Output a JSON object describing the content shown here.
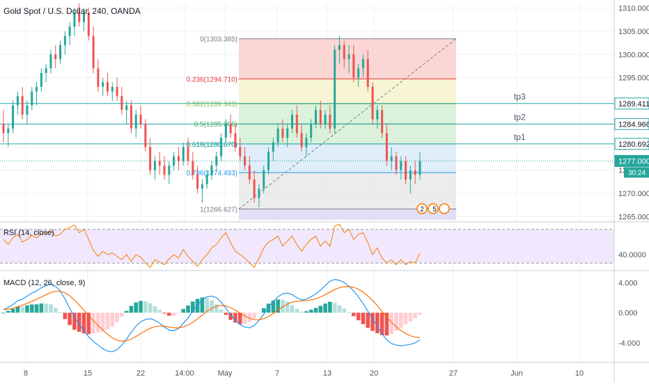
{
  "header": {
    "symbol_title": "Gold Spot / U.S. Dollar, 240, OANDA"
  },
  "colors": {
    "up": "#26a69a",
    "down": "#ef5350",
    "grid": "#eef0f3",
    "axis_text": "#50535e",
    "horizontal_line": "#26a6a6",
    "current_price_bg": "#26a69a",
    "rsi_line": "#f57c00",
    "rsi_band": "#e9d8fd",
    "macd_line": "#2196f3",
    "signal_line": "#ff6d00",
    "hist_up_strong": "#26a69a",
    "hist_up_weak": "#b2dfdb",
    "hist_down_strong": "#ef5350",
    "hist_down_weak": "#ffcdd2",
    "fib_zone_0": "#f8c9c7",
    "fib_zone_1": "#f4f2c4",
    "fib_zone_2": "#cdeccf",
    "fib_zone_3": "#d5e8f7",
    "fib_zone_4": "#e6e6e6",
    "fib_zone_5": "#d9d7f3"
  },
  "chart_data": {
    "type": "candlestick",
    "title": "Gold Spot / U.S. Dollar, 240, OANDA",
    "x_ticks": [
      "8",
      "15",
      "22",
      "14:00",
      "May",
      "7",
      "13",
      "20",
      "27",
      "Jun",
      "10"
    ],
    "price_axis": {
      "ticks": [
        "1310.000",
        "1305.000",
        "1300.000",
        "1295.000",
        "1290.000",
        "1285.000",
        "1280.000",
        "1275.000",
        "1270.000",
        "1265.000"
      ],
      "ylim": [
        1264,
        1311
      ],
      "tag_values": [
        1289.411,
        1284.966,
        1280.692,
        1277.0
      ],
      "tag_labels": [
        "1289.411",
        "1284.966",
        "1280.692",
        "1277.000"
      ],
      "countdown": "30:24",
      "current_price": 1277.0
    },
    "horizontal_lines": [
      {
        "label": "tp3",
        "value": 1289.411
      },
      {
        "label": "tp2",
        "value": 1284.966
      },
      {
        "label": "tp1",
        "value": 1280.692
      }
    ],
    "fibonacci": [
      {
        "ratio": "0",
        "price": 1303.385,
        "label": "0(1303.385)",
        "color": "#787b86"
      },
      {
        "ratio": "0.236",
        "price": 1294.71,
        "label": "0.236(1294.710)",
        "color": "#e53935"
      },
      {
        "ratio": "0.382",
        "price": 1289.343,
        "label": "0.382(1289.343)",
        "color": "#8bc34a"
      },
      {
        "ratio": "0.5",
        "price": 1285.006,
        "label": "0.5(1285.006)",
        "color": "#4caf50"
      },
      {
        "ratio": "0.618",
        "price": 1280.67,
        "label": "0.618(1280.670)",
        "color": "#009688"
      },
      {
        "ratio": "0.786",
        "price": 1274.493,
        "label": "0.786(1274.493)",
        "color": "#2196f3"
      },
      {
        "ratio": "1",
        "price": 1266.627,
        "label": "1(1266.627)",
        "color": "#787b86"
      }
    ],
    "candles": [
      [
        1285,
        1288,
        1281,
        1283
      ],
      [
        1283,
        1285,
        1280,
        1284
      ],
      [
        1284,
        1290,
        1283,
        1289
      ],
      [
        1289,
        1292,
        1287,
        1291
      ],
      [
        1291,
        1293,
        1286,
        1287
      ],
      [
        1287,
        1290,
        1285,
        1289
      ],
      [
        1289,
        1293,
        1288,
        1292
      ],
      [
        1292,
        1294,
        1289,
        1293
      ],
      [
        1293,
        1297,
        1292,
        1296
      ],
      [
        1296,
        1298,
        1294,
        1297
      ],
      [
        1297,
        1301,
        1296,
        1300
      ],
      [
        1300,
        1302,
        1297,
        1299
      ],
      [
        1299,
        1303,
        1298,
        1302
      ],
      [
        1302,
        1305,
        1300,
        1304
      ],
      [
        1304,
        1307,
        1302,
        1306
      ],
      [
        1306,
        1310,
        1304,
        1309
      ],
      [
        1309,
        1311,
        1306,
        1307
      ],
      [
        1307,
        1310,
        1305,
        1309
      ],
      [
        1309,
        1310,
        1303,
        1304
      ],
      [
        1304,
        1306,
        1296,
        1297
      ],
      [
        1297,
        1299,
        1292,
        1293
      ],
      [
        1293,
        1295,
        1291,
        1294
      ],
      [
        1294,
        1296,
        1291,
        1292
      ],
      [
        1292,
        1294,
        1290,
        1293
      ],
      [
        1293,
        1295,
        1290,
        1291
      ],
      [
        1291,
        1293,
        1287,
        1288
      ],
      [
        1288,
        1290,
        1285,
        1289
      ],
      [
        1289,
        1290,
        1283,
        1284
      ],
      [
        1284,
        1288,
        1282,
        1287
      ],
      [
        1287,
        1289,
        1284,
        1285
      ],
      [
        1285,
        1286,
        1279,
        1280
      ],
      [
        1280,
        1282,
        1274,
        1275
      ],
      [
        1275,
        1278,
        1273,
        1277
      ],
      [
        1277,
        1279,
        1274,
        1276
      ],
      [
        1276,
        1278,
        1273,
        1274
      ],
      [
        1274,
        1277,
        1272,
        1276
      ],
      [
        1276,
        1279,
        1275,
        1278
      ],
      [
        1278,
        1280,
        1275,
        1277
      ],
      [
        1277,
        1281,
        1276,
        1280
      ],
      [
        1280,
        1282,
        1276,
        1277
      ],
      [
        1277,
        1279,
        1273,
        1274
      ],
      [
        1274,
        1276,
        1270,
        1271
      ],
      [
        1271,
        1273,
        1268,
        1272
      ],
      [
        1272,
        1275,
        1271,
        1274
      ],
      [
        1274,
        1277,
        1273,
        1276
      ],
      [
        1276,
        1279,
        1275,
        1278
      ],
      [
        1278,
        1283,
        1277,
        1282
      ],
      [
        1282,
        1286,
        1281,
        1285
      ],
      [
        1285,
        1287,
        1282,
        1283
      ],
      [
        1283,
        1285,
        1279,
        1280
      ],
      [
        1280,
        1282,
        1277,
        1278
      ],
      [
        1278,
        1280,
        1275,
        1276
      ],
      [
        1276,
        1278,
        1272,
        1273
      ],
      [
        1273,
        1275,
        1268,
        1269
      ],
      [
        1269,
        1272,
        1267,
        1271
      ],
      [
        1271,
        1276,
        1270,
        1275
      ],
      [
        1275,
        1280,
        1274,
        1279
      ],
      [
        1279,
        1282,
        1277,
        1281
      ],
      [
        1281,
        1285,
        1280,
        1284
      ],
      [
        1284,
        1286,
        1281,
        1282
      ],
      [
        1282,
        1285,
        1280,
        1284
      ],
      [
        1284,
        1288,
        1283,
        1287
      ],
      [
        1287,
        1289,
        1282,
        1283
      ],
      [
        1283,
        1285,
        1279,
        1280
      ],
      [
        1280,
        1283,
        1278,
        1282
      ],
      [
        1282,
        1286,
        1281,
        1285
      ],
      [
        1285,
        1289,
        1284,
        1288
      ],
      [
        1288,
        1290,
        1284,
        1285
      ],
      [
        1285,
        1288,
        1284,
        1287
      ],
      [
        1287,
        1289,
        1283,
        1284
      ],
      [
        1284,
        1302,
        1283,
        1301
      ],
      [
        1301,
        1304,
        1298,
        1302
      ],
      [
        1302,
        1303,
        1297,
        1299
      ],
      [
        1299,
        1302,
        1296,
        1300
      ],
      [
        1300,
        1302,
        1294,
        1295
      ],
      [
        1295,
        1298,
        1293,
        1297
      ],
      [
        1297,
        1300,
        1295,
        1299
      ],
      [
        1299,
        1301,
        1292,
        1293
      ],
      [
        1293,
        1294,
        1285,
        1286
      ],
      [
        1286,
        1289,
        1284,
        1288
      ],
      [
        1288,
        1289,
        1282,
        1283
      ],
      [
        1283,
        1285,
        1276,
        1277
      ],
      [
        1277,
        1280,
        1275,
        1278
      ],
      [
        1278,
        1279,
        1274,
        1275
      ],
      [
        1275,
        1278,
        1273,
        1277
      ],
      [
        1277,
        1278,
        1272,
        1273
      ],
      [
        1273,
        1276,
        1270,
        1275
      ],
      [
        1275,
        1277,
        1272,
        1274
      ],
      [
        1274,
        1279,
        1273,
        1277
      ]
    ],
    "rsi": {
      "label": "RSI (14, close)",
      "tick": "40.0000",
      "tick_value": 40,
      "band": [
        30,
        70
      ],
      "ylim": [
        22,
        78
      ],
      "values": [
        58,
        52,
        60,
        64,
        55,
        58,
        63,
        60,
        65,
        66,
        68,
        62,
        64,
        70,
        72,
        75,
        66,
        70,
        58,
        45,
        38,
        44,
        40,
        42,
        38,
        34,
        40,
        32,
        40,
        37,
        30,
        25,
        34,
        31,
        28,
        35,
        40,
        36,
        46,
        38,
        32,
        26,
        34,
        40,
        48,
        52,
        60,
        66,
        54,
        44,
        40,
        36,
        30,
        25,
        36,
        48,
        55,
        58,
        62,
        50,
        56,
        62,
        52,
        44,
        52,
        58,
        62,
        50,
        56,
        50,
        74,
        76,
        66,
        70,
        58,
        64,
        66,
        54,
        40,
        48,
        36,
        30,
        34,
        28,
        34,
        28,
        32,
        30,
        42
      ]
    },
    "macd": {
      "label": "MACD (12, 26, close, 9)",
      "ticks": [
        "4.000",
        "0.000",
        "-4.000"
      ],
      "tick_values": [
        4,
        0,
        -4
      ],
      "ylim": [
        -6.5,
        5.5
      ],
      "macd": [
        0.4,
        0.7,
        1.1,
        1.6,
        1.8,
        2.2,
        2.6,
        2.9,
        3.3,
        3.6,
        3.8,
        3.5,
        2.9,
        1.8,
        0.6,
        -0.6,
        -1.5,
        -2.4,
        -3.2,
        -3.8,
        -4.3,
        -4.8,
        -5.1,
        -5.2,
        -4.9,
        -4.3,
        -3.5,
        -2.6,
        -1.8,
        -1.2,
        -0.9,
        -0.8,
        -1.0,
        -1.4,
        -1.9,
        -2.3,
        -2.4,
        -2.1,
        -1.4,
        -0.7,
        0.2,
        1.0,
        1.7,
        2.1,
        2.2,
        2.0,
        1.4,
        0.6,
        -0.3,
        -1.0,
        -1.6,
        -1.9,
        -2.0,
        -1.7,
        -1.0,
        -0.2,
        0.7,
        1.5,
        2.1,
        2.5,
        2.6,
        2.4,
        2.0,
        1.7,
        1.8,
        2.1,
        2.5,
        3.0,
        3.6,
        4.2,
        4.4,
        4.3,
        4.0,
        3.5,
        2.9,
        2.1,
        1.2,
        0.2,
        -0.8,
        -1.8,
        -2.8,
        -3.6,
        -4.1,
        -4.3,
        -4.4,
        -4.3,
        -4.2,
        -4.0,
        -3.6
      ]
    },
    "legend": {
      "events_badge": "2",
      "events_badge_2": "5"
    }
  }
}
